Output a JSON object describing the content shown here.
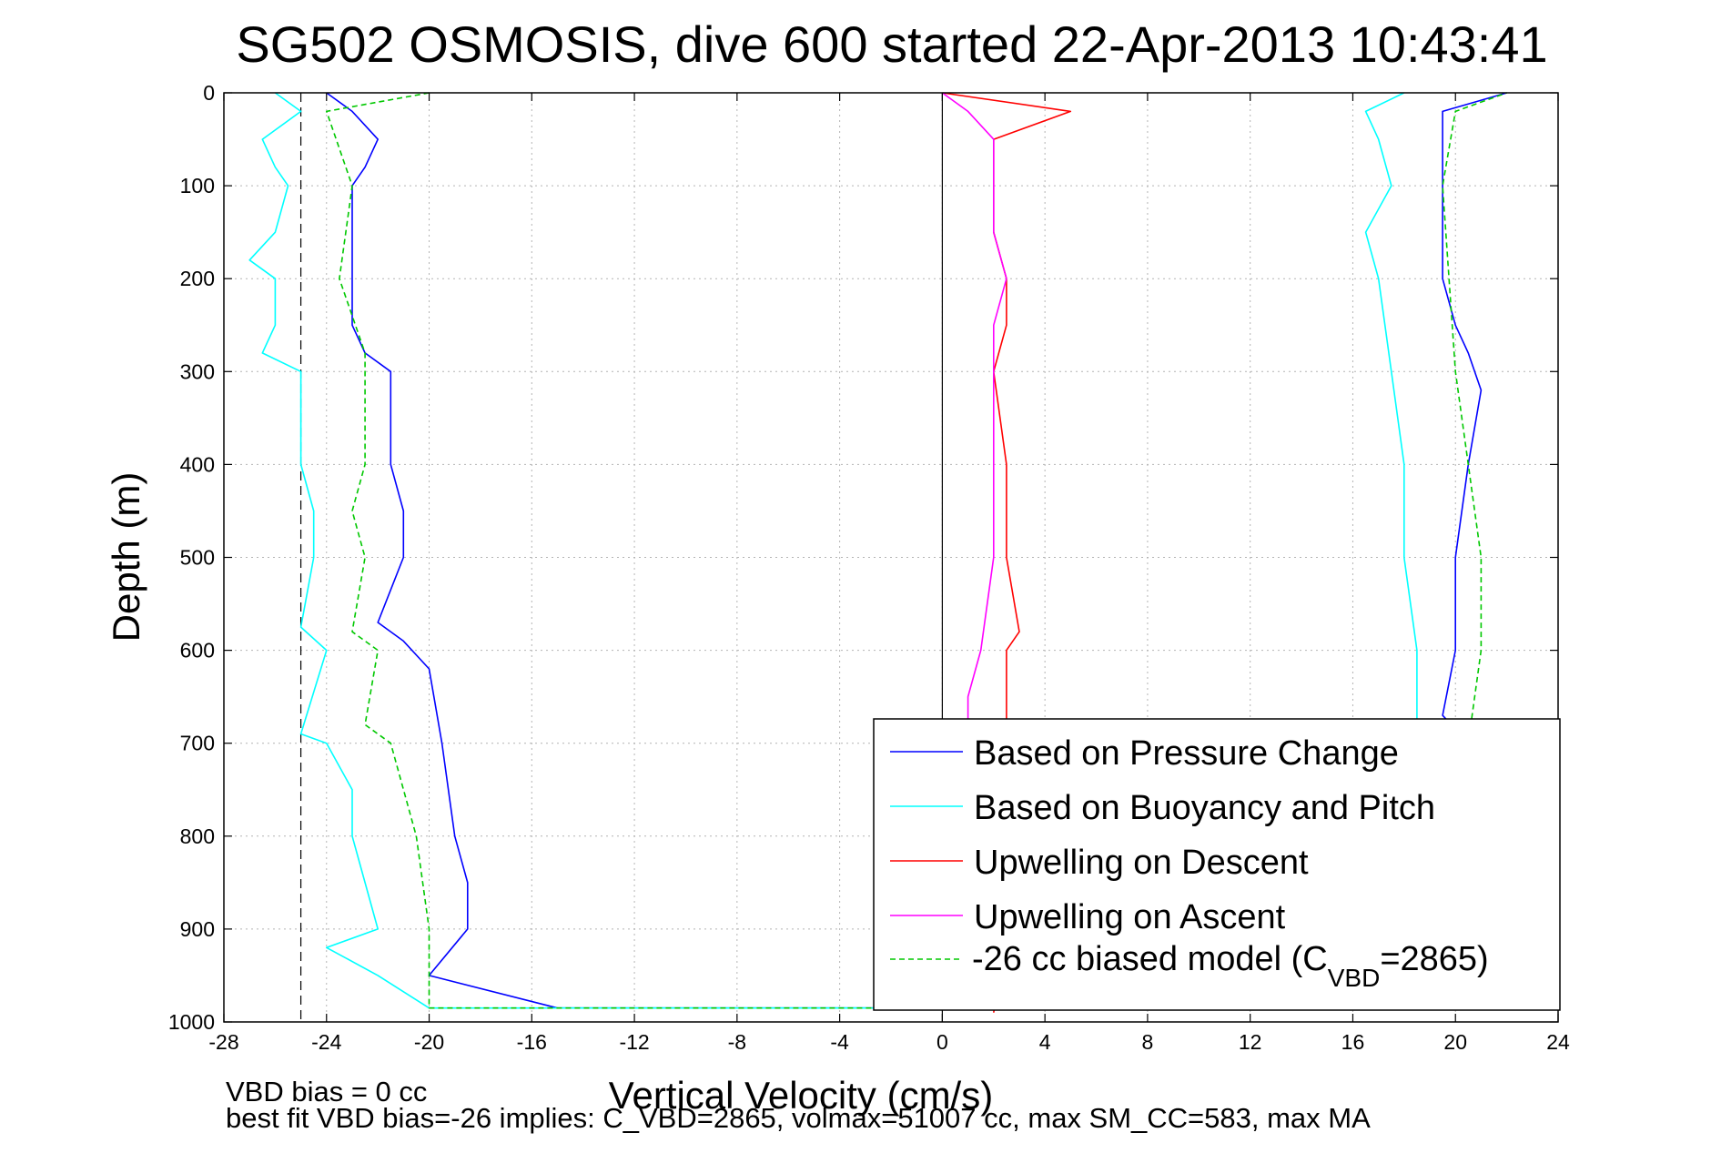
{
  "chart_data": {
    "type": "line",
    "title": "SG502 OSMOSIS, dive 600 started 22-Apr-2013 10:43:41",
    "xlabel": "Vertical Velocity (cm/s)",
    "ylabel": "Depth (m)",
    "xlim": [
      -28,
      24
    ],
    "ylim": [
      0,
      1000
    ],
    "y_reversed": true,
    "grid": true,
    "legend_placement": "bottom-right",
    "x_ticks": [
      "-28",
      "-24",
      "-20",
      "-16",
      "-12",
      "-8",
      "-4",
      "0",
      "4",
      "8",
      "12",
      "16",
      "20",
      "24"
    ],
    "y_ticks": [
      "0",
      "100",
      "200",
      "300",
      "400",
      "500",
      "600",
      "700",
      "800",
      "900",
      "1000"
    ],
    "reference_lines": [
      {
        "orientation": "vertical",
        "x": -25,
        "style": "dashed"
      },
      {
        "orientation": "vertical",
        "x": 0,
        "style": "solid"
      }
    ],
    "series": [
      {
        "name": "Based on Pressure Change",
        "color": "#0000ff",
        "style": "solid",
        "depth": [
          0,
          20,
          50,
          80,
          100,
          150,
          200,
          250,
          280,
          300,
          350,
          400,
          450,
          500,
          570,
          590,
          620,
          700,
          800,
          850,
          900,
          950,
          985,
          985,
          960,
          900,
          800,
          700,
          670,
          600,
          500,
          400,
          320,
          280,
          250,
          200,
          150,
          100,
          50,
          20,
          0
        ],
        "velocity": [
          -24,
          -23,
          -22,
          -22.5,
          -23,
          -23,
          -23,
          -23,
          -22.5,
          -21.5,
          -21.5,
          -21.5,
          -21,
          -21,
          -22,
          -21,
          -20,
          -19.5,
          -19,
          -18.5,
          -18.5,
          -20,
          -15,
          18,
          19,
          19,
          19,
          20.5,
          19.5,
          20,
          20,
          20.5,
          21,
          20.5,
          20,
          19.5,
          19.5,
          19.5,
          19.5,
          19.5,
          22
        ]
      },
      {
        "name": "Based on Buoyancy and Pitch",
        "color": "#00ffff",
        "style": "solid",
        "depth": [
          0,
          20,
          50,
          80,
          100,
          150,
          180,
          200,
          250,
          280,
          300,
          400,
          450,
          500,
          575,
          600,
          690,
          700,
          750,
          800,
          850,
          900,
          920,
          950,
          985,
          985,
          900,
          800,
          700,
          600,
          500,
          400,
          300,
          200,
          150,
          100,
          50,
          20,
          0
        ],
        "velocity": [
          -26,
          -25,
          -26.5,
          -26,
          -25.5,
          -26,
          -27,
          -26,
          -26,
          -26.5,
          -25,
          -25,
          -24.5,
          -24.5,
          -25,
          -24,
          -25,
          -24,
          -23,
          -23,
          -22.5,
          -22,
          -24,
          -22,
          -20,
          16,
          18,
          18.5,
          18.5,
          18.5,
          18,
          18,
          17.5,
          17,
          16.5,
          17.5,
          17,
          16.5,
          18
        ]
      },
      {
        "name": "Upwelling on Descent",
        "color": "#ff0000",
        "style": "solid",
        "depth": [
          0,
          20,
          50,
          100,
          150,
          200,
          250,
          300,
          400,
          500,
          580,
          600,
          650,
          700,
          800,
          900,
          990
        ],
        "velocity": [
          0,
          5,
          2,
          2,
          2,
          2.5,
          2.5,
          2,
          2.5,
          2.5,
          3,
          2.5,
          2.5,
          2.5,
          2.5,
          2.5,
          2
        ]
      },
      {
        "name": "Upwelling on Ascent",
        "color": "#ff00ff",
        "style": "solid",
        "depth": [
          0,
          20,
          50,
          100,
          150,
          200,
          250,
          300,
          400,
          500,
          600,
          650,
          700
        ],
        "velocity": [
          0,
          1,
          2,
          2,
          2,
          2.5,
          2,
          2,
          2,
          2,
          1.5,
          1,
          1
        ]
      },
      {
        "name": "-26 cc biased model (C_VBD=2865)",
        "color": "#00c800",
        "style": "dashed",
        "depth": [
          0,
          20,
          100,
          200,
          280,
          300,
          400,
          450,
          500,
          580,
          600,
          680,
          700,
          800,
          900,
          985,
          985,
          900,
          800,
          700,
          600,
          500,
          400,
          300,
          100,
          20,
          0
        ],
        "velocity": [
          -20,
          -24,
          -23,
          -23.5,
          -22.5,
          -22.5,
          -22.5,
          -23,
          -22.5,
          -23,
          -22,
          -22.5,
          -21.5,
          -20.5,
          -20,
          -20,
          16,
          20,
          20,
          20.5,
          21,
          21,
          20.5,
          20,
          19.5,
          20,
          22
        ]
      }
    ],
    "legend": {
      "entries": [
        "Based on Pressure Change",
        "Based on Buoyancy and Pitch",
        "Upwelling on Descent",
        "Upwelling on Ascent",
        "-26 cc biased model (C",
        "VBD",
        "=2865)"
      ]
    },
    "annotations": {
      "line1": "VBD bias = 0 cc",
      "line2": "best fit VBD bias=-26 implies: C_VBD=2865, volmax=51007 cc, max SM_CC=583, max MA"
    }
  }
}
